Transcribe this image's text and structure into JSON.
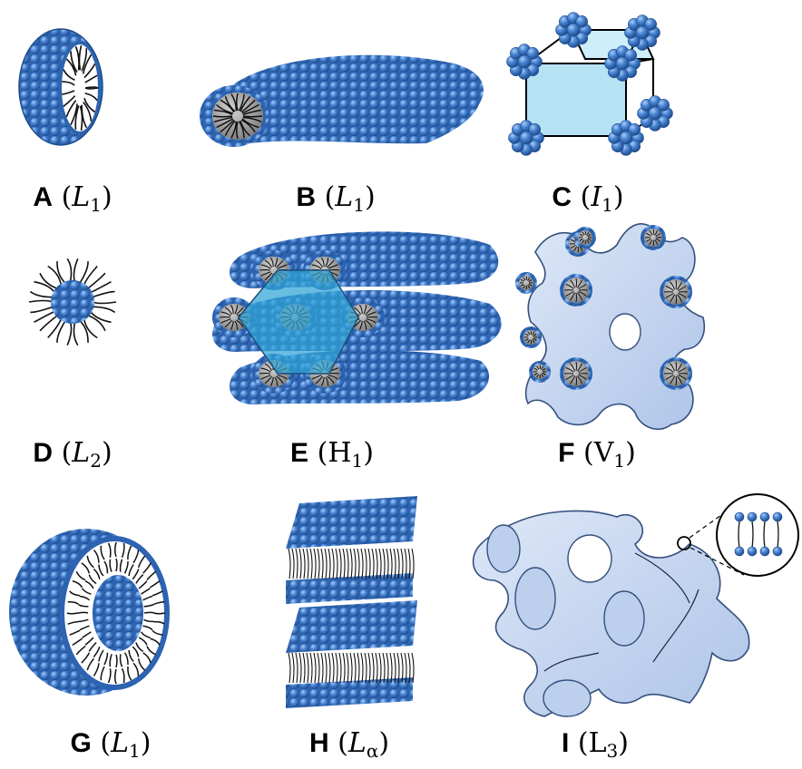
{
  "panels": [
    {
      "letter": "A",
      "symbol": "L",
      "subscript": "1",
      "italic": true
    },
    {
      "letter": "B",
      "symbol": "L",
      "subscript": "1",
      "italic": true
    },
    {
      "letter": "C",
      "symbol": "I",
      "subscript": "1",
      "italic": true
    },
    {
      "letter": "D",
      "symbol": "L",
      "subscript": "2",
      "italic": true
    },
    {
      "letter": "E",
      "symbol": "H",
      "subscript": "1",
      "italic": false
    },
    {
      "letter": "F",
      "symbol": "V",
      "subscript": "1",
      "italic": false
    },
    {
      "letter": "G",
      "symbol": "L",
      "subscript": "1",
      "italic": true
    },
    {
      "letter": "H",
      "symbol": "L",
      "subscript": "α",
      "italic": true
    },
    {
      "letter": "I",
      "symbol": "L",
      "subscript": "3",
      "italic": false
    }
  ],
  "colors": {
    "headgroup": "#3d78c9",
    "headgroup_dark": "#1f4f94",
    "headgroup_light": "#8ab4ea",
    "tail": "#111111",
    "core_gray": "#9a9a9a",
    "cubic_face": "#b5e3f3",
    "hexagon": "#2fa3d6",
    "surface": "#c6d6f0",
    "surface_edge": "#35507e"
  }
}
